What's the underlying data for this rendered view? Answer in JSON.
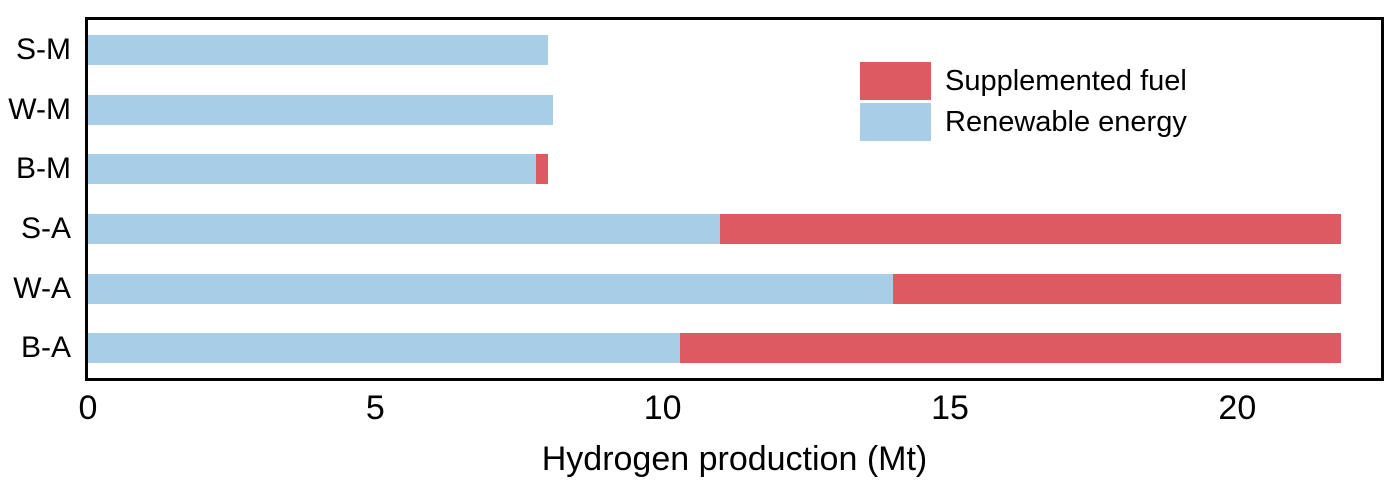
{
  "chart_data": {
    "type": "bar",
    "orientation": "horizontal",
    "stacked": true,
    "title": "",
    "xlabel": "Hydrogen production (Mt)",
    "ylabel": "",
    "categories": [
      "S-M",
      "W-M",
      "B-M",
      "S-A",
      "W-A",
      "B-A"
    ],
    "series": [
      {
        "name": "Renewable energy",
        "color": "#A8CDE6",
        "values": [
          8.0,
          8.1,
          7.8,
          11.0,
          14.0,
          10.3
        ]
      },
      {
        "name": "Supplemented fuel",
        "color": "#DD5A63",
        "values": [
          0,
          0,
          0.2,
          10.8,
          7.8,
          11.5
        ]
      }
    ],
    "xlim": [
      0,
      22.5
    ],
    "xticks": [
      0,
      5,
      10,
      15,
      20
    ],
    "grid": false,
    "frame": true,
    "legend": {
      "position": "upper-right",
      "items": [
        {
          "label": "Supplemented fuel",
          "color": "#DD5A63"
        },
        {
          "label": "Renewable energy",
          "color": "#A8CDE6"
        }
      ]
    }
  }
}
